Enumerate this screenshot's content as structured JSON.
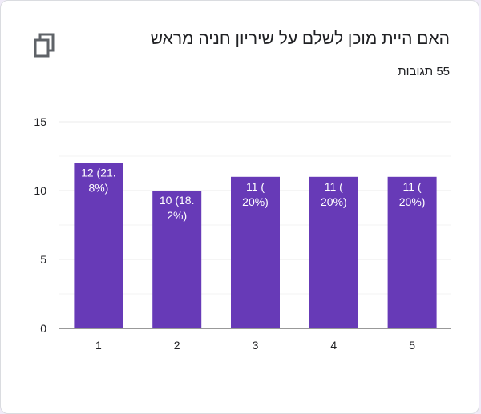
{
  "title": "האם היית מוכן לשלם על שיריון חניה מראש",
  "responses": "55 תגובות",
  "copy_icon": "copy-icon",
  "colors": {
    "bar": "#673ab7",
    "grid": "#ebebeb",
    "axis": "#333333"
  },
  "chart_data": {
    "type": "bar",
    "categories": [
      "1",
      "2",
      "3",
      "4",
      "5"
    ],
    "values": [
      12,
      10,
      11,
      11,
      11
    ],
    "data_labels": [
      [
        "12 (21.",
        "8%)"
      ],
      [
        "10 (18.",
        "2%)"
      ],
      [
        "11 (",
        "20%)"
      ],
      [
        "11 (",
        "20%)"
      ],
      [
        "11 (",
        "20%)"
      ]
    ],
    "y_ticks": [
      "0",
      "5",
      "10",
      "15"
    ],
    "ylim": [
      0,
      15
    ],
    "title": "האם היית מוכן לשלם על שיריון חניה מראש",
    "xlabel": "",
    "ylabel": ""
  }
}
